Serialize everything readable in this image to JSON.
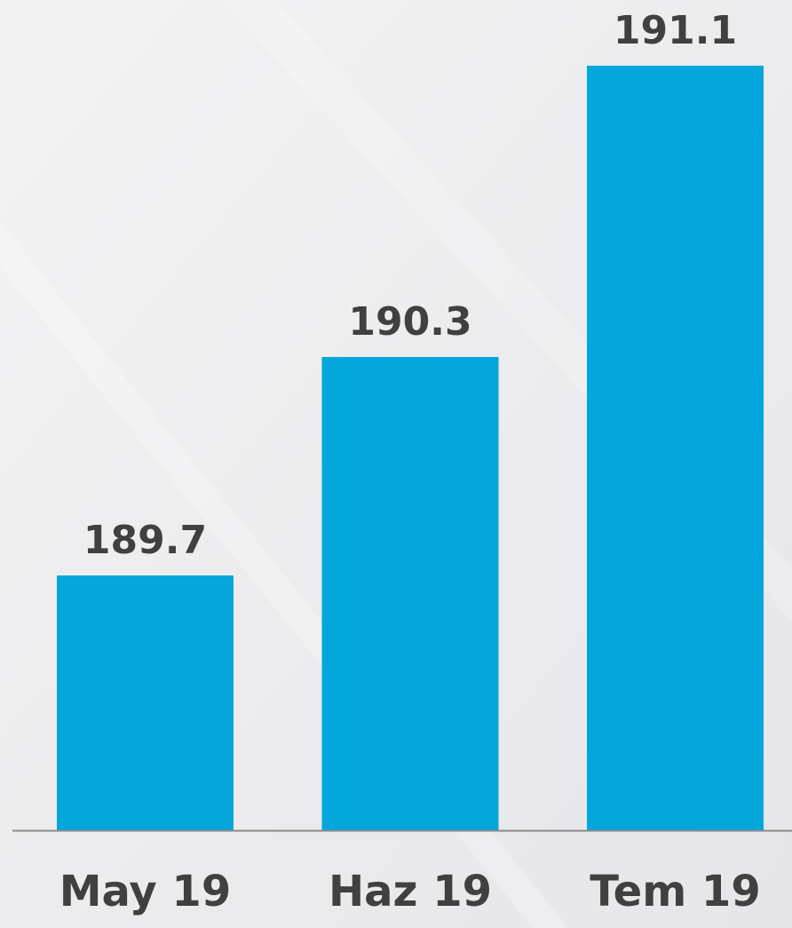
{
  "chart_data": {
    "type": "bar",
    "categories": [
      "May 19",
      "Haz 19",
      "Tem 19"
    ],
    "values": [
      189.7,
      190.3,
      191.1
    ],
    "color": "#05a6dc",
    "ylim": [
      189,
      191.2
    ]
  }
}
